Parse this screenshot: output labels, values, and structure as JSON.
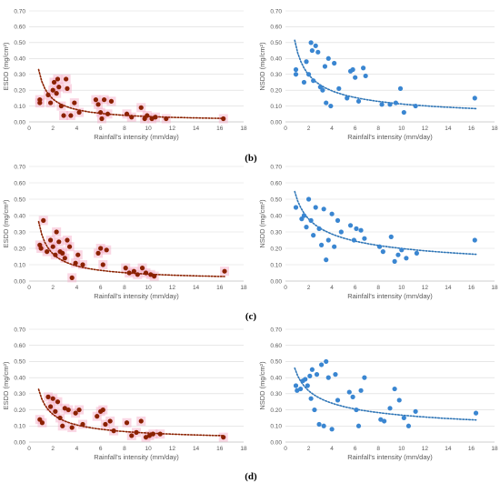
{
  "panel_labels": [
    "(b)",
    "(c)",
    "(d)"
  ],
  "colors": {
    "esdd_point": "#8b2100",
    "esdd_trend": "#8b2100",
    "esdd_highlight": "#f4a7c4",
    "nsdd_point": "#3a86d1",
    "nsdd_trend": "#2e75b6"
  },
  "chart_data": [
    {
      "type": "scatter",
      "panel": "(b)",
      "ylabel": "ESDD (mg/cm²)",
      "xlabel": "Rainfall's intensity (mm/day)",
      "xlim": [
        0,
        18
      ],
      "xticks": [
        0,
        2,
        4,
        6,
        8,
        10,
        12,
        14,
        16,
        18
      ],
      "ylim": [
        0,
        0.7
      ],
      "yticks": [
        "0.00",
        "0.10",
        "0.20",
        "0.30",
        "0.40",
        "0.50",
        "0.60",
        "0.70"
      ],
      "grid": true,
      "color": "#8b2100",
      "trend": "power",
      "x": [
        0.9,
        0.9,
        1.6,
        1.8,
        2.0,
        2.1,
        2.3,
        2.4,
        2.5,
        2.7,
        2.9,
        3.1,
        3.2,
        3.5,
        3.8,
        4.2,
        5.6,
        5.8,
        6.0,
        6.1,
        6.3,
        6.6,
        6.9,
        8.2,
        8.6,
        9.4,
        9.7,
        9.9,
        10.3,
        10.6,
        11.5,
        16.3
      ],
      "y": [
        0.14,
        0.12,
        0.17,
        0.12,
        0.2,
        0.25,
        0.18,
        0.27,
        0.22,
        0.1,
        0.04,
        0.27,
        0.21,
        0.04,
        0.12,
        0.06,
        0.14,
        0.11,
        0.06,
        0.02,
        0.14,
        0.05,
        0.13,
        0.05,
        0.03,
        0.09,
        0.02,
        0.04,
        0.02,
        0.03,
        0.02,
        0.02
      ],
      "trend_coef": [
        0.27,
        -0.9
      ]
    },
    {
      "type": "scatter",
      "panel": "(b)",
      "ylabel": "NSDD (mg/cm²)",
      "xlabel": "Rainfall's intensity (mm/day)",
      "xlim": [
        0,
        18
      ],
      "xticks": [
        0,
        2,
        4,
        6,
        8,
        10,
        12,
        14,
        16,
        18
      ],
      "ylim": [
        0,
        0.7
      ],
      "yticks": [
        "0.00",
        "0.10",
        "0.20",
        "0.30",
        "0.40",
        "0.50",
        "0.60",
        "0.70"
      ],
      "grid": true,
      "color": "#3a86d1",
      "trend": "power",
      "x": [
        0.9,
        0.9,
        1.6,
        1.8,
        2.0,
        2.2,
        2.3,
        2.4,
        2.6,
        2.8,
        3.0,
        3.2,
        3.4,
        3.5,
        3.7,
        3.9,
        4.2,
        4.6,
        5.3,
        5.6,
        5.8,
        6.0,
        6.3,
        6.7,
        6.9,
        8.3,
        9.0,
        9.5,
        9.9,
        10.2,
        11.2,
        16.3
      ],
      "y": [
        0.33,
        0.3,
        0.25,
        0.38,
        0.3,
        0.5,
        0.45,
        0.26,
        0.48,
        0.44,
        0.22,
        0.2,
        0.35,
        0.12,
        0.4,
        0.1,
        0.37,
        0.21,
        0.15,
        0.32,
        0.33,
        0.28,
        0.13,
        0.34,
        0.29,
        0.11,
        0.11,
        0.12,
        0.21,
        0.06,
        0.1,
        0.15
      ],
      "trend_coef": [
        0.45,
        -0.6
      ]
    },
    {
      "type": "scatter",
      "panel": "(c)",
      "ylabel": "ESDD (mg/cm²)",
      "xlabel": "Rainfall's intensity (mm/day)",
      "xlim": [
        0,
        18
      ],
      "xticks": [
        0,
        2,
        4,
        6,
        8,
        10,
        12,
        14,
        16,
        18
      ],
      "ylim": [
        0,
        0.7
      ],
      "yticks": [
        "0.00",
        "0.10",
        "0.20",
        "0.30",
        "0.40",
        "0.50",
        "0.60",
        "0.70"
      ],
      "grid": true,
      "color": "#8b2100",
      "trend": "power",
      "x": [
        0.9,
        1.0,
        1.2,
        1.5,
        1.8,
        2.0,
        2.2,
        2.3,
        2.5,
        2.6,
        2.8,
        3.0,
        3.2,
        3.4,
        3.6,
        3.9,
        4.1,
        4.5,
        5.8,
        6.0,
        6.2,
        6.5,
        8.1,
        8.4,
        8.8,
        9.1,
        9.5,
        9.8,
        10.2,
        10.5,
        16.4
      ],
      "y": [
        0.22,
        0.2,
        0.37,
        0.18,
        0.25,
        0.21,
        0.16,
        0.3,
        0.24,
        0.18,
        0.17,
        0.14,
        0.25,
        0.21,
        0.02,
        0.11,
        0.16,
        0.1,
        0.17,
        0.2,
        0.1,
        0.19,
        0.08,
        0.05,
        0.06,
        0.04,
        0.08,
        0.05,
        0.04,
        0.03,
        0.06
      ],
      "trend_coef": [
        0.3,
        -0.85
      ]
    },
    {
      "type": "scatter",
      "panel": "(c)",
      "ylabel": "NSDD (mg/cm²)",
      "xlabel": "Rainfall's intensity (mm/day)",
      "xlim": [
        0,
        18
      ],
      "xticks": [
        0,
        2,
        4,
        6,
        8,
        10,
        12,
        14,
        16,
        18
      ],
      "ylim": [
        0,
        0.7
      ],
      "yticks": [
        "0.00",
        "0.10",
        "0.20",
        "0.30",
        "0.40",
        "0.50",
        "0.60",
        "0.70"
      ],
      "grid": true,
      "color": "#3a86d1",
      "trend": "power",
      "x": [
        0.9,
        1.4,
        1.6,
        1.8,
        2.0,
        2.2,
        2.4,
        2.6,
        2.9,
        3.1,
        3.3,
        3.5,
        3.7,
        4.0,
        4.2,
        4.5,
        4.8,
        5.6,
        5.9,
        6.1,
        6.5,
        6.8,
        8.1,
        8.4,
        9.1,
        9.4,
        9.7,
        10.0,
        10.4,
        11.3,
        16.3
      ],
      "y": [
        0.45,
        0.38,
        0.4,
        0.33,
        0.5,
        0.37,
        0.28,
        0.45,
        0.32,
        0.22,
        0.44,
        0.13,
        0.25,
        0.41,
        0.21,
        0.37,
        0.3,
        0.34,
        0.25,
        0.32,
        0.31,
        0.26,
        0.21,
        0.18,
        0.27,
        0.12,
        0.16,
        0.19,
        0.14,
        0.17,
        0.25
      ],
      "trend_coef": [
        0.5,
        -0.4
      ]
    },
    {
      "type": "scatter",
      "panel": "(d)",
      "ylabel": "ESDD (mg/cm²)",
      "xlabel": "Rainfall's intensity (mm/day)",
      "xlim": [
        0,
        18
      ],
      "xticks": [
        0,
        2,
        4,
        6,
        8,
        10,
        12,
        14,
        16,
        18
      ],
      "ylim": [
        0,
        0.7
      ],
      "yticks": [
        "0.00",
        "0.10",
        "0.20",
        "0.30",
        "0.40",
        "0.50",
        "0.60",
        "0.70"
      ],
      "grid": true,
      "color": "#8b2100",
      "trend": "power",
      "x": [
        0.9,
        1.1,
        1.6,
        1.8,
        2.0,
        2.2,
        2.4,
        2.6,
        2.8,
        3.0,
        3.3,
        3.6,
        3.9,
        4.2,
        4.5,
        5.7,
        6.0,
        6.2,
        6.4,
        6.8,
        7.1,
        8.2,
        8.6,
        9.0,
        9.4,
        9.8,
        10.1,
        10.4,
        11.0,
        16.3
      ],
      "y": [
        0.14,
        0.12,
        0.28,
        0.22,
        0.27,
        0.19,
        0.25,
        0.15,
        0.1,
        0.21,
        0.2,
        0.09,
        0.18,
        0.2,
        0.11,
        0.16,
        0.19,
        0.2,
        0.11,
        0.13,
        0.07,
        0.12,
        0.04,
        0.06,
        0.13,
        0.03,
        0.04,
        0.05,
        0.05,
        0.03
      ],
      "trend_coef": [
        0.28,
        -0.7
      ]
    },
    {
      "type": "scatter",
      "panel": "(d)",
      "ylabel": "NSDD (mg/cm²)",
      "xlabel": "Rainfall's intensity (mm/day)",
      "xlim": [
        0,
        18
      ],
      "xticks": [
        0,
        2,
        4,
        6,
        8,
        10,
        12,
        14,
        16,
        18
      ],
      "ylim": [
        0,
        0.7
      ],
      "yticks": [
        "0.00",
        "0.10",
        "0.20",
        "0.30",
        "0.40",
        "0.50",
        "0.60",
        "0.70"
      ],
      "grid": true,
      "color": "#3a86d1",
      "trend": "power",
      "x": [
        0.9,
        1.0,
        1.3,
        1.5,
        1.7,
        1.9,
        2.1,
        2.2,
        2.3,
        2.5,
        2.7,
        2.9,
        3.1,
        3.3,
        3.5,
        3.7,
        4.0,
        4.3,
        4.5,
        5.5,
        5.8,
        6.1,
        6.3,
        6.5,
        6.8,
        8.2,
        8.5,
        9.0,
        9.4,
        9.8,
        10.2,
        10.6,
        11.2,
        16.4
      ],
      "y": [
        0.35,
        0.32,
        0.33,
        0.38,
        0.39,
        0.35,
        0.41,
        0.27,
        0.45,
        0.2,
        0.42,
        0.11,
        0.48,
        0.1,
        0.5,
        0.4,
        0.08,
        0.42,
        0.26,
        0.31,
        0.28,
        0.2,
        0.1,
        0.32,
        0.4,
        0.14,
        0.13,
        0.21,
        0.33,
        0.26,
        0.15,
        0.1,
        0.19,
        0.18
      ],
      "trend_coef": [
        0.42,
        -0.4
      ]
    }
  ]
}
